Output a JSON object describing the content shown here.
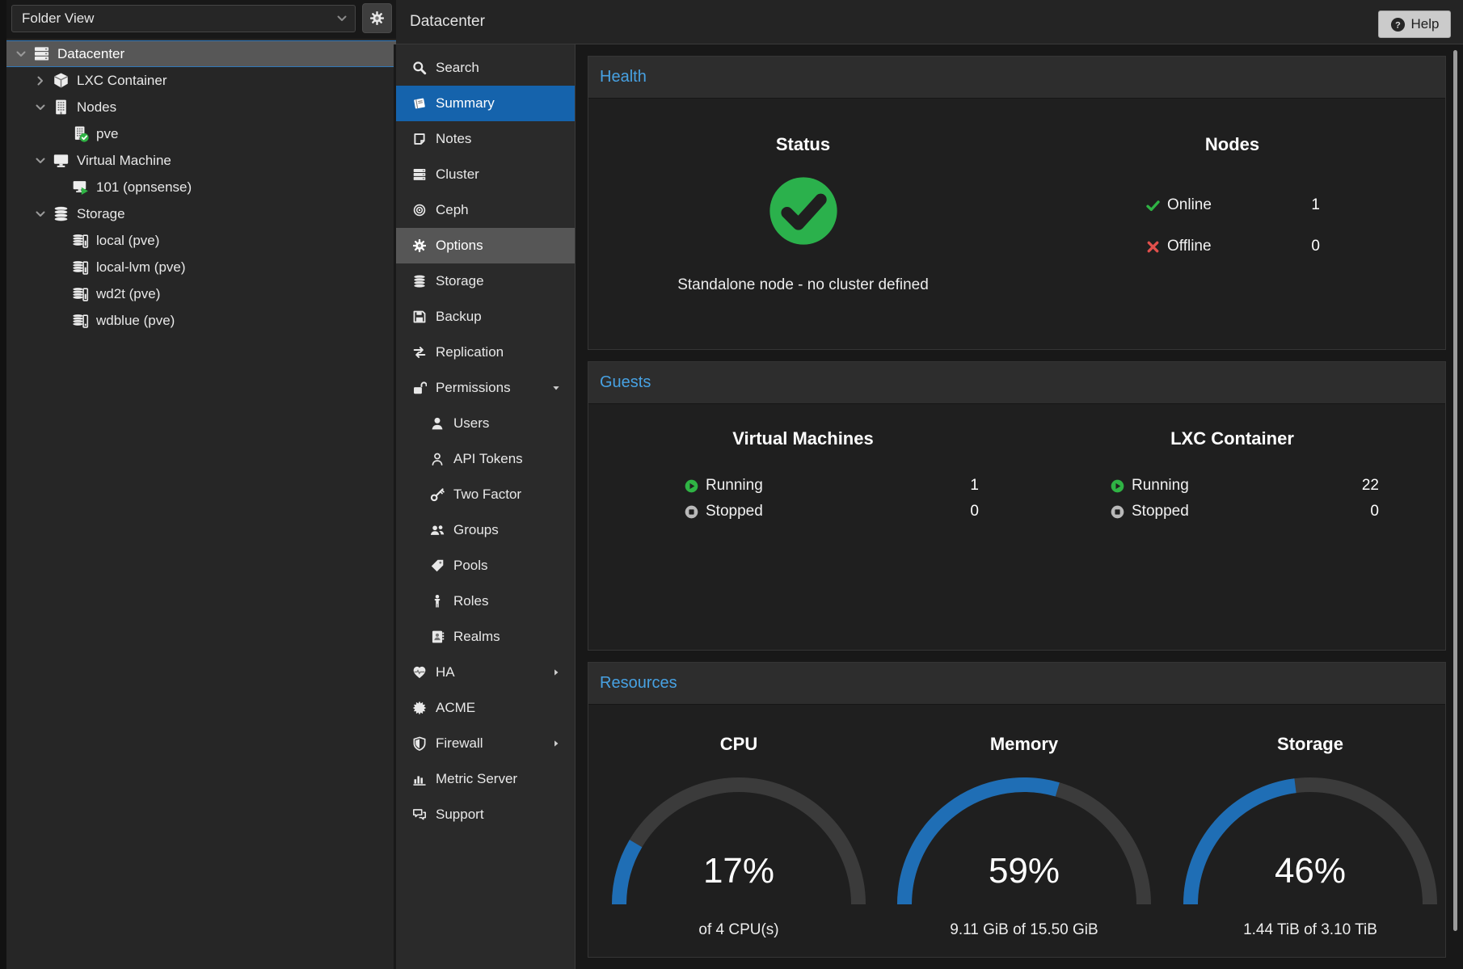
{
  "header": {
    "title": "Datacenter",
    "help_label": "Help"
  },
  "left_toolbar": {
    "view_selector": "Folder View"
  },
  "tree": {
    "items": [
      {
        "label": "Datacenter",
        "icon": "rack",
        "indent": 0,
        "arrow": "down",
        "selected": true
      },
      {
        "label": "LXC Container",
        "icon": "cube",
        "indent": 1,
        "arrow": "right"
      },
      {
        "label": "Nodes",
        "icon": "building",
        "indent": 1,
        "arrow": "down"
      },
      {
        "label": "pve",
        "icon": "building-check",
        "indent": 2,
        "arrow": null
      },
      {
        "label": "Virtual Machine",
        "icon": "monitor",
        "indent": 1,
        "arrow": "down"
      },
      {
        "label": "101 (opnsense)",
        "icon": "monitor-play",
        "indent": 2,
        "arrow": null
      },
      {
        "label": "Storage",
        "icon": "db",
        "indent": 1,
        "arrow": "down"
      },
      {
        "label": "local (pve)",
        "icon": "db-mid",
        "indent": 2,
        "arrow": null
      },
      {
        "label": "local-lvm (pve)",
        "icon": "db-mid",
        "indent": 2,
        "arrow": null
      },
      {
        "label": "wd2t (pve)",
        "icon": "db-mid",
        "indent": 2,
        "arrow": null
      },
      {
        "label": "wdblue (pve)",
        "icon": "db-low",
        "indent": 2,
        "arrow": null
      }
    ]
  },
  "nav": {
    "items": [
      {
        "label": "Search",
        "icon": "search"
      },
      {
        "label": "Summary",
        "icon": "book",
        "state": "selected"
      },
      {
        "label": "Notes",
        "icon": "note"
      },
      {
        "label": "Cluster",
        "icon": "rack"
      },
      {
        "label": "Ceph",
        "icon": "ceph"
      },
      {
        "label": "Options",
        "icon": "gear",
        "state": "hover"
      },
      {
        "label": "Storage",
        "icon": "db"
      },
      {
        "label": "Backup",
        "icon": "floppy"
      },
      {
        "label": "Replication",
        "icon": "repeat"
      },
      {
        "label": "Permissions",
        "icon": "unlock",
        "caret": "down"
      },
      {
        "label": "Users",
        "icon": "user",
        "indent": 1
      },
      {
        "label": "API Tokens",
        "icon": "user-o",
        "indent": 1
      },
      {
        "label": "Two Factor",
        "icon": "key",
        "indent": 1
      },
      {
        "label": "Groups",
        "icon": "users",
        "indent": 1
      },
      {
        "label": "Pools",
        "icon": "tag",
        "indent": 1
      },
      {
        "label": "Roles",
        "icon": "male",
        "indent": 1
      },
      {
        "label": "Realms",
        "icon": "address-book",
        "indent": 1
      },
      {
        "label": "HA",
        "icon": "heartbeat",
        "caret": "right"
      },
      {
        "label": "ACME",
        "icon": "certificate"
      },
      {
        "label": "Firewall",
        "icon": "shield",
        "caret": "right"
      },
      {
        "label": "Metric Server",
        "icon": "chart"
      },
      {
        "label": "Support",
        "icon": "comments"
      }
    ]
  },
  "health": {
    "title": "Health",
    "status": {
      "title": "Status",
      "message": "Standalone node - no cluster defined"
    },
    "nodes": {
      "title": "Nodes",
      "rows": [
        {
          "icon": "check",
          "label": "Online",
          "value": "1"
        },
        {
          "icon": "cross",
          "label": "Offline",
          "value": "0"
        }
      ]
    }
  },
  "guests": {
    "title": "Guests",
    "groups": [
      {
        "title": "Virtual Machines",
        "rows": [
          {
            "icon": "play-circle",
            "label": "Running",
            "value": "1"
          },
          {
            "icon": "stop-circle",
            "label": "Stopped",
            "value": "0"
          }
        ]
      },
      {
        "title": "LXC Container",
        "rows": [
          {
            "icon": "play-circle",
            "label": "Running",
            "value": "22"
          },
          {
            "icon": "stop-circle",
            "label": "Stopped",
            "value": "0"
          }
        ]
      }
    ]
  },
  "resources": {
    "title": "Resources",
    "gauges": [
      {
        "title": "CPU",
        "percent": 17,
        "detail": "of 4 CPU(s)"
      },
      {
        "title": "Memory",
        "percent": 59,
        "detail": "9.11 GiB of 15.50 GiB"
      },
      {
        "title": "Storage",
        "percent": 46,
        "detail": "1.44 TiB of 3.10 TiB"
      }
    ]
  },
  "colors": {
    "accent": "#1563ac",
    "gauge_blue": "#1f6eb5",
    "gauge_track": "#3b3b3b",
    "panel_title_blue": "#47a1e2",
    "ok_green": "#2fb344",
    "err_red": "#e2504c",
    "selected_gray": "#575757"
  }
}
